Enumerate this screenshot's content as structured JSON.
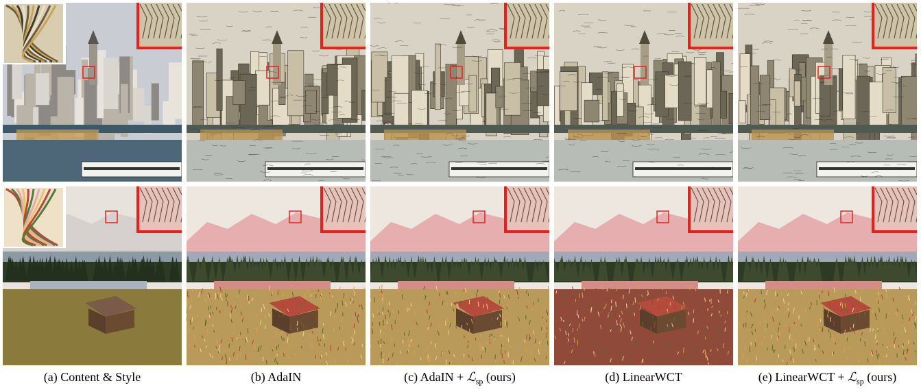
{
  "figure": {
    "captions": [
      {
        "prefix": "(a) Content & Style",
        "math": "",
        "sub": "",
        "suffix": ""
      },
      {
        "prefix": "(b) AdaIN",
        "math": "",
        "sub": "",
        "suffix": ""
      },
      {
        "prefix": "(c) AdaIN + ",
        "math": "ℒ",
        "sub": "sp",
        "suffix": " (ours)"
      },
      {
        "prefix": "(d) LinearWCT",
        "math": "",
        "sub": "",
        "suffix": ""
      },
      {
        "prefix": "(e) LinearWCT + ",
        "math": "ℒ",
        "sub": "sp",
        "suffix": " (ours)"
      }
    ],
    "rows": [
      "cityscape",
      "mountain-meadow"
    ],
    "colors": {
      "zoom_box": "#e8201a",
      "city_sky": "#c9ccd3",
      "city_water": "#4d6678",
      "mountain_sky": "#e8e2dc",
      "meadow": "#8a7a3c",
      "forest": "#2d3a24"
    }
  }
}
